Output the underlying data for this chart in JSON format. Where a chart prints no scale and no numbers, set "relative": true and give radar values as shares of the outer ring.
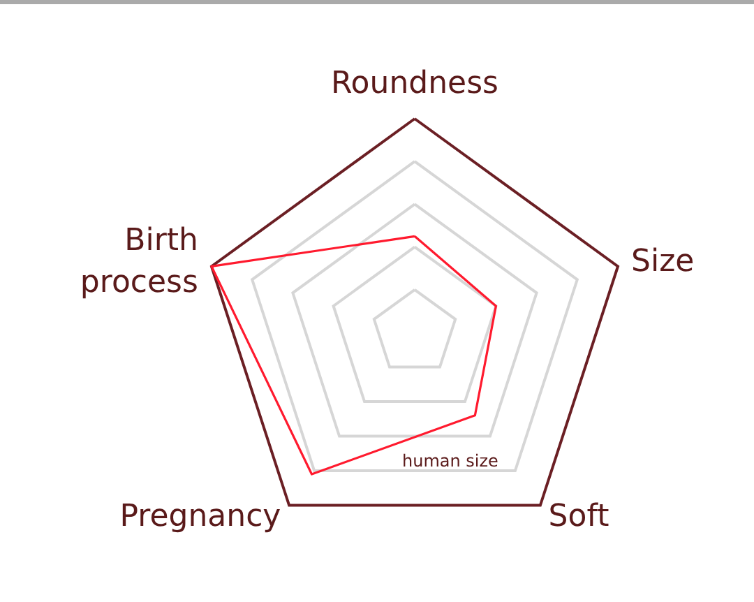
{
  "chart_data": {
    "type": "radar",
    "relative": true,
    "categories": [
      "Roundness",
      "Size",
      "Soft",
      "Pregnancy",
      "Birth\nprocess"
    ],
    "series": [
      {
        "name": "human size",
        "color": "#ff1a2e",
        "values": [
          0.45,
          0.4,
          0.48,
          0.82,
          1.0
        ]
      }
    ],
    "legend": false,
    "marker": "none"
  }
}
